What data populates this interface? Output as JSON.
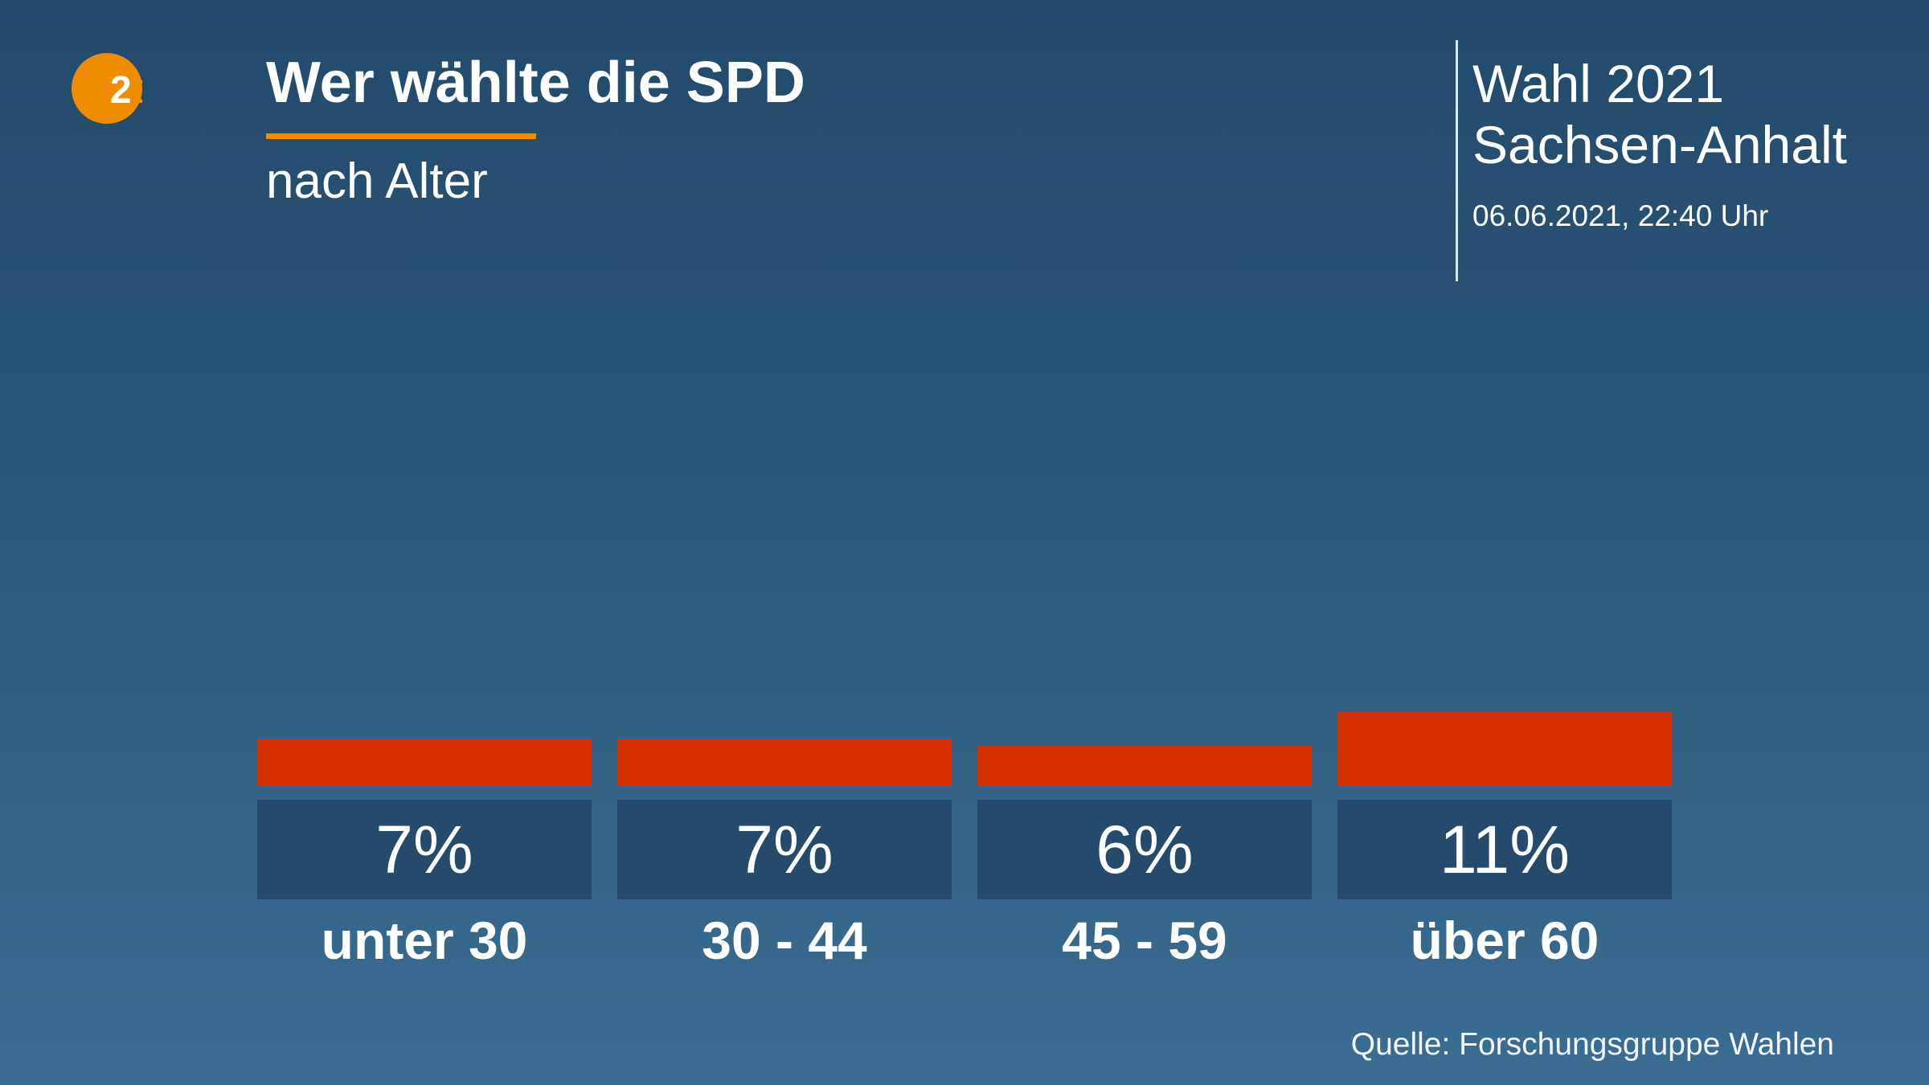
{
  "logo": {
    "text": "ZDF",
    "colors": {
      "circle": "#f08c00",
      "letters": "#ffffff"
    }
  },
  "header": {
    "title": "Wer wählte die SPD",
    "subtitle": "nach Alter",
    "election": "Wahl 2021",
    "region": "Sachsen-Anhalt",
    "datetime": "06.06.2021, 22:40 Uhr"
  },
  "source": "Quelle: Forschungsgruppe Wahlen",
  "colors": {
    "accent": "#f08c00",
    "bar": "#d63000",
    "value_box": "#254a6b"
  },
  "chart_data": {
    "type": "bar",
    "title": "Wer wählte die SPD",
    "subtitle": "nach Alter",
    "categories": [
      "unter 30",
      "30 - 44",
      "45 - 59",
      "über 60"
    ],
    "values": [
      7,
      7,
      6,
      11
    ],
    "value_labels": [
      "7%",
      "7%",
      "6%",
      "11%"
    ],
    "unit": "%",
    "grid": false,
    "legend": "none"
  }
}
